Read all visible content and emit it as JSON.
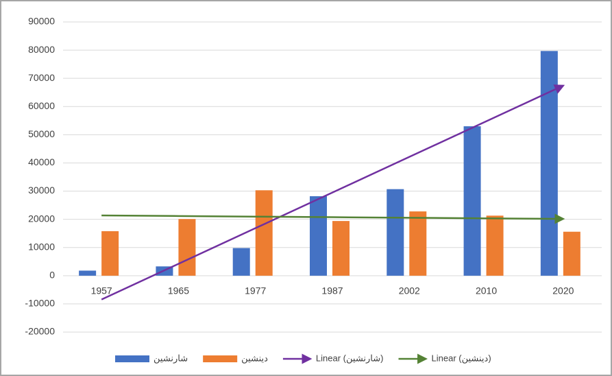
{
  "chart_data": {
    "type": "bar",
    "categories": [
      "1957",
      "1965",
      "1977",
      "1987",
      "2002",
      "2010",
      "2020"
    ],
    "series": [
      {
        "name": "شارنشین",
        "color": "#4472c4",
        "values": [
          1800,
          3300,
          9800,
          28200,
          30700,
          53000,
          79700
        ],
        "trendline": {
          "name": "Linear (شارنشین)",
          "color": "#7030a0"
        }
      },
      {
        "name": "دینشین",
        "color": "#ed7d31",
        "values": [
          15800,
          20100,
          30300,
          19400,
          22800,
          21300,
          15600
        ],
        "trendline": {
          "name": "Linear (دینشین)",
          "color": "#548235"
        }
      }
    ],
    "ylim": [
      -20000,
      90000
    ],
    "yticks": [
      -20000,
      -10000,
      0,
      10000,
      20000,
      30000,
      40000,
      50000,
      60000,
      70000,
      80000,
      90000
    ],
    "grid": true,
    "legend": "bottom"
  }
}
